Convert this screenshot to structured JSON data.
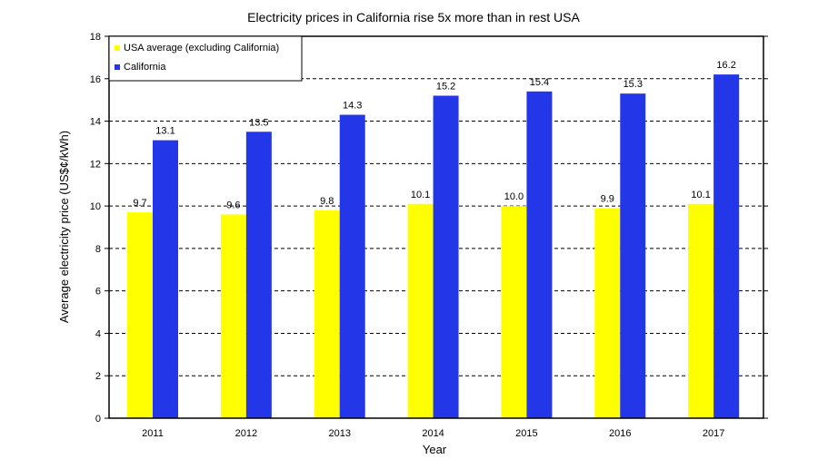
{
  "chart_data": {
    "type": "bar",
    "title": "Electricity prices in California rise 5x more than in rest USA",
    "xlabel": "Year",
    "ylabel": "Average electricity price (US$¢/kWh)",
    "categories": [
      "2011",
      "2012",
      "2013",
      "2014",
      "2015",
      "2016",
      "2017"
    ],
    "series": [
      {
        "name": "USA average (excluding California)",
        "color": "#FFFF00",
        "values": [
          9.7,
          9.6,
          9.8,
          10.1,
          10.0,
          9.9,
          10.1
        ],
        "labels": [
          "9.7",
          "9.6",
          "9.8",
          "10.1",
          "10.0",
          "9.9",
          "10.1"
        ]
      },
      {
        "name": "California",
        "color": "#2437E8",
        "values": [
          13.1,
          13.5,
          14.3,
          15.2,
          15.4,
          15.3,
          16.2
        ],
        "labels": [
          "13.1",
          "13.5",
          "14.3",
          "15.2",
          "15.4",
          "15.3",
          "16.2"
        ]
      }
    ],
    "ylim": [
      0,
      18
    ],
    "yticks": [
      "0",
      "2",
      "4",
      "6",
      "8",
      "10",
      "12",
      "14",
      "16",
      "18"
    ],
    "grid": "horizontal-dashed",
    "legend_position": "top-left"
  }
}
